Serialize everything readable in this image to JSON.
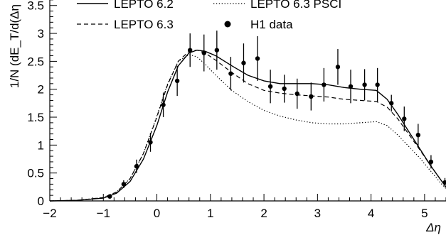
{
  "chart_data": {
    "type": "line",
    "xlabel": "Δη",
    "ylabel": "1/N (dE_T/d(Δη",
    "xlim": [
      -2,
      5.4
    ],
    "ylim": [
      0,
      3.7
    ],
    "x_ticks": [
      -2,
      -1,
      0,
      1,
      2,
      3,
      4,
      5
    ],
    "y_ticks": [
      0,
      0.5,
      1,
      1.5,
      2,
      2.5,
      3,
      3.5
    ],
    "x_tick_labels": [
      "−2",
      "−1",
      "0",
      "1",
      "2",
      "3",
      "4",
      "5"
    ],
    "y_tick_labels": [
      "0",
      "0.5",
      "1",
      "1.5",
      "2",
      "2.5",
      "3",
      "3.5"
    ],
    "legend": [
      {
        "label": "LEPTO 6.2",
        "style": "solid"
      },
      {
        "label": "LEPTO 6.3 PSCI",
        "style": "dotted"
      },
      {
        "label": "LEPTO 6.3",
        "style": "dashed"
      },
      {
        "label": "H1 data",
        "style": "marker"
      }
    ],
    "series": [
      {
        "name": "LEPTO 6.2",
        "style": "solid",
        "x": [
          -2.0,
          -1.5,
          -1.0,
          -0.75,
          -0.5,
          -0.25,
          0.0,
          0.2,
          0.4,
          0.6,
          0.75,
          0.9,
          1.1,
          1.4,
          1.7,
          2.0,
          2.3,
          2.6,
          2.9,
          3.2,
          3.5,
          3.8,
          4.1,
          4.3,
          4.5,
          4.7,
          4.9,
          5.1,
          5.3,
          5.4
        ],
        "y": [
          0.0,
          0.01,
          0.05,
          0.14,
          0.35,
          0.75,
          1.35,
          1.95,
          2.42,
          2.65,
          2.7,
          2.68,
          2.6,
          2.42,
          2.25,
          2.15,
          2.1,
          2.1,
          2.1,
          2.08,
          2.03,
          2.0,
          1.98,
          1.82,
          1.55,
          1.25,
          0.95,
          0.65,
          0.38,
          0.25
        ]
      },
      {
        "name": "LEPTO 6.3",
        "style": "dashed",
        "x": [
          -2.0,
          -1.5,
          -1.0,
          -0.75,
          -0.5,
          -0.25,
          0.0,
          0.2,
          0.4,
          0.6,
          0.75,
          0.9,
          1.1,
          1.4,
          1.7,
          2.0,
          2.3,
          2.6,
          2.9,
          3.2,
          3.5,
          3.8,
          4.1,
          4.3,
          4.5,
          4.7,
          4.9,
          5.1,
          5.3,
          5.4
        ],
        "y": [
          0.0,
          0.01,
          0.06,
          0.16,
          0.4,
          0.85,
          1.5,
          2.08,
          2.5,
          2.68,
          2.7,
          2.65,
          2.52,
          2.3,
          2.1,
          1.98,
          1.93,
          1.9,
          1.88,
          1.86,
          1.82,
          1.8,
          1.78,
          1.68,
          1.47,
          1.2,
          0.93,
          0.65,
          0.38,
          0.25
        ]
      },
      {
        "name": "LEPTO 6.3 PSCI",
        "style": "dotted",
        "x": [
          -2.0,
          -1.5,
          -1.0,
          -0.75,
          -0.5,
          -0.25,
          0.0,
          0.2,
          0.4,
          0.6,
          0.75,
          0.9,
          1.1,
          1.4,
          1.7,
          2.0,
          2.3,
          2.6,
          2.9,
          3.2,
          3.5,
          3.8,
          4.1,
          4.3,
          4.5,
          4.7,
          4.9,
          5.1,
          5.3,
          5.4
        ],
        "y": [
          0.0,
          0.01,
          0.06,
          0.16,
          0.4,
          0.85,
          1.52,
          2.1,
          2.5,
          2.62,
          2.58,
          2.45,
          2.25,
          1.98,
          1.78,
          1.62,
          1.52,
          1.45,
          1.4,
          1.38,
          1.38,
          1.4,
          1.42,
          1.35,
          1.18,
          0.98,
          0.78,
          0.55,
          0.32,
          0.22
        ]
      },
      {
        "name": "H1 data",
        "style": "marker",
        "points": [
          {
            "x": -0.88,
            "y": 0.08,
            "err": 0.03
          },
          {
            "x": -0.62,
            "y": 0.3,
            "err": 0.07
          },
          {
            "x": -0.38,
            "y": 0.62,
            "err": 0.12
          },
          {
            "x": -0.12,
            "y": 1.05,
            "err": 0.17
          },
          {
            "x": 0.12,
            "y": 1.72,
            "err": 0.22
          },
          {
            "x": 0.38,
            "y": 2.15,
            "err": 0.27
          },
          {
            "x": 0.62,
            "y": 2.7,
            "err": 0.3
          },
          {
            "x": 0.88,
            "y": 2.65,
            "err": 0.33
          },
          {
            "x": 1.12,
            "y": 2.7,
            "err": 0.35
          },
          {
            "x": 1.38,
            "y": 2.28,
            "err": 0.3
          },
          {
            "x": 1.62,
            "y": 2.47,
            "err": 0.35
          },
          {
            "x": 1.88,
            "y": 2.55,
            "err": 0.4
          },
          {
            "x": 2.12,
            "y": 2.05,
            "err": 0.3
          },
          {
            "x": 2.38,
            "y": 2.01,
            "err": 0.25
          },
          {
            "x": 2.62,
            "y": 1.92,
            "err": 0.27
          },
          {
            "x": 2.88,
            "y": 1.87,
            "err": 0.25
          },
          {
            "x": 3.12,
            "y": 2.08,
            "err": 0.3
          },
          {
            "x": 3.38,
            "y": 2.4,
            "err": 0.32
          },
          {
            "x": 3.62,
            "y": 2.05,
            "err": 0.3
          },
          {
            "x": 3.88,
            "y": 2.08,
            "err": 0.28
          },
          {
            "x": 4.12,
            "y": 2.08,
            "err": 0.3
          },
          {
            "x": 4.38,
            "y": 1.75,
            "err": 0.15
          },
          {
            "x": 4.62,
            "y": 1.47,
            "err": 0.22
          },
          {
            "x": 4.88,
            "y": 1.18,
            "err": 0.2
          },
          {
            "x": 5.12,
            "y": 0.7,
            "err": 0.12
          },
          {
            "x": 5.38,
            "y": 0.33,
            "err": 0.08
          }
        ]
      }
    ]
  }
}
